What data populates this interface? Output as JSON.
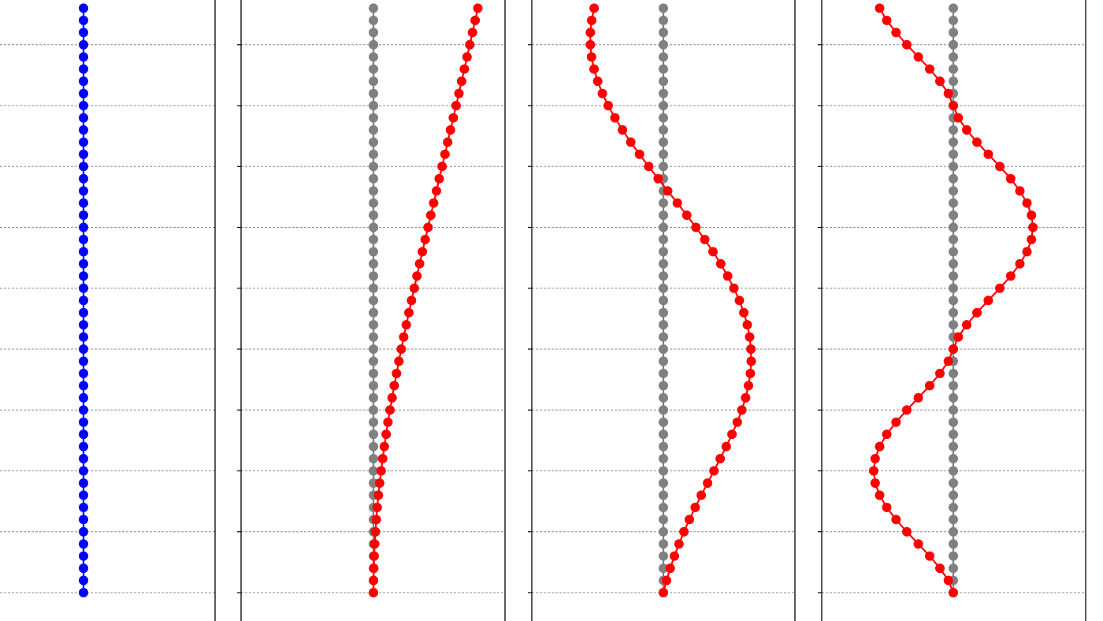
{
  "chart_data": [
    {
      "type": "line",
      "panel": "mode-0",
      "grid": "horizontal-dashed",
      "series": [
        {
          "color": "#0000ff",
          "x": [
            0.0,
            0.0,
            0.0,
            0.0,
            0.0,
            0.0,
            0.0,
            0.0,
            0.0,
            0.0,
            0.0,
            0.0,
            0.0,
            0.0,
            0.0,
            0.0,
            0.0,
            0.0,
            0.0,
            0.0,
            0.0,
            0.0,
            0.0,
            0.0,
            0.0,
            0.0,
            0.0,
            0.0,
            0.0,
            0.0,
            0.0,
            0.0,
            0.0,
            0.0,
            0.0,
            0.0,
            0.0,
            0.0,
            0.0,
            0.0,
            0.0,
            0.0,
            0.0,
            0.0,
            0.0,
            0.0,
            0.0,
            0.0,
            0.0
          ],
          "y": [
            0,
            0.2,
            0.4,
            0.6,
            0.8,
            1.0,
            1.2,
            1.4,
            1.6,
            1.8,
            2.0,
            2.2,
            2.4,
            2.6,
            2.8,
            3.0,
            3.2,
            3.4,
            3.6,
            3.8,
            4.0,
            4.2,
            4.4,
            4.6,
            4.8,
            5.0,
            5.2,
            5.4,
            5.6,
            5.8,
            6.0,
            6.2,
            6.4,
            6.6,
            6.8,
            7.0,
            7.2,
            7.4,
            7.6,
            7.8,
            8.0,
            8.2,
            8.4,
            8.6,
            8.8,
            9.0,
            9.2,
            9.4,
            9.6
          ]
        }
      ]
    },
    {
      "type": "line",
      "panel": "mode-1",
      "grid": "horizontal-dashed",
      "series": [
        {
          "color": "#808080",
          "x": [
            0.0,
            0.0,
            0.0,
            0.0,
            0.0,
            0.0,
            0.0,
            0.0,
            0.0,
            0.0,
            0.0,
            0.0,
            0.0,
            0.0,
            0.0,
            0.0,
            0.0,
            0.0,
            0.0,
            0.0,
            0.0,
            0.0,
            0.0,
            0.0,
            0.0,
            0.0,
            0.0,
            0.0,
            0.0,
            0.0,
            0.0,
            0.0,
            0.0,
            0.0,
            0.0,
            0.0,
            0.0,
            0.0,
            0.0,
            0.0,
            0.0,
            0.0,
            0.0,
            0.0,
            0.0,
            0.0,
            0.0,
            0.0,
            0.0
          ],
          "y": [
            0,
            0.2,
            0.4,
            0.6,
            0.8,
            1.0,
            1.2,
            1.4,
            1.6,
            1.8,
            2.0,
            2.2,
            2.4,
            2.6,
            2.8,
            3.0,
            3.2,
            3.4,
            3.6,
            3.8,
            4.0,
            4.2,
            4.4,
            4.6,
            4.8,
            5.0,
            5.2,
            5.4,
            5.6,
            5.8,
            6.0,
            6.2,
            6.4,
            6.6,
            6.8,
            7.0,
            7.2,
            7.4,
            7.6,
            7.8,
            8.0,
            8.2,
            8.4,
            8.6,
            8.8,
            9.0,
            9.2,
            9.4,
            9.6
          ]
        },
        {
          "color": "#ff0000",
          "x": [
            0.0,
            0.001,
            0.003,
            0.006,
            0.011,
            0.017,
            0.024,
            0.032,
            0.042,
            0.053,
            0.065,
            0.078,
            0.092,
            0.107,
            0.123,
            0.14,
            0.158,
            0.176,
            0.195,
            0.215,
            0.235,
            0.256,
            0.278,
            0.3,
            0.322,
            0.345,
            0.368,
            0.391,
            0.414,
            0.438,
            0.462,
            0.485,
            0.509,
            0.533,
            0.557,
            0.581,
            0.605,
            0.628,
            0.652,
            0.676,
            0.699,
            0.723,
            0.746,
            0.769,
            0.792,
            0.815,
            0.838,
            0.861,
            0.883
          ],
          "y": [
            0,
            0.2,
            0.4,
            0.6,
            0.8,
            1.0,
            1.2,
            1.4,
            1.6,
            1.8,
            2.0,
            2.2,
            2.4,
            2.6,
            2.8,
            3.0,
            3.2,
            3.4,
            3.6,
            3.8,
            4.0,
            4.2,
            4.4,
            4.6,
            4.8,
            5.0,
            5.2,
            5.4,
            5.6,
            5.8,
            6.0,
            6.2,
            6.4,
            6.6,
            6.8,
            7.0,
            7.2,
            7.4,
            7.6,
            7.8,
            8.0,
            8.2,
            8.4,
            8.6,
            8.8,
            9.0,
            9.2,
            9.4,
            9.6
          ]
        }
      ]
    },
    {
      "type": "line",
      "panel": "mode-2",
      "grid": "horizontal-dashed",
      "series": [
        {
          "color": "#808080",
          "x": [
            0.0,
            0.0,
            0.0,
            0.0,
            0.0,
            0.0,
            0.0,
            0.0,
            0.0,
            0.0,
            0.0,
            0.0,
            0.0,
            0.0,
            0.0,
            0.0,
            0.0,
            0.0,
            0.0,
            0.0,
            0.0,
            0.0,
            0.0,
            0.0,
            0.0,
            0.0,
            0.0,
            0.0,
            0.0,
            0.0,
            0.0,
            0.0,
            0.0,
            0.0,
            0.0,
            0.0,
            0.0,
            0.0,
            0.0,
            0.0,
            0.0,
            0.0,
            0.0,
            0.0,
            0.0,
            0.0,
            0.0,
            0.0,
            0.0
          ],
          "y": [
            0,
            0.2,
            0.4,
            0.6,
            0.8,
            1.0,
            1.2,
            1.4,
            1.6,
            1.8,
            2.0,
            2.2,
            2.4,
            2.6,
            2.8,
            3.0,
            3.2,
            3.4,
            3.6,
            3.8,
            4.0,
            4.2,
            4.4,
            4.6,
            4.8,
            5.0,
            5.2,
            5.4,
            5.6,
            5.8,
            6.0,
            6.2,
            6.4,
            6.6,
            6.8,
            7.0,
            7.2,
            7.4,
            7.6,
            7.8,
            8.0,
            8.2,
            8.4,
            8.6,
            8.8,
            9.0,
            9.2,
            9.4,
            9.6
          ]
        },
        {
          "color": "#ff0000",
          "x": [
            0.0,
            0.027,
            0.058,
            0.093,
            0.132,
            0.174,
            0.22,
            0.269,
            0.321,
            0.374,
            0.428,
            0.481,
            0.532,
            0.581,
            0.625,
            0.664,
            0.696,
            0.72,
            0.736,
            0.743,
            0.741,
            0.73,
            0.71,
            0.681,
            0.643,
            0.597,
            0.544,
            0.485,
            0.42,
            0.35,
            0.275,
            0.198,
            0.118,
            0.037,
            -0.044,
            -0.124,
            -0.202,
            -0.276,
            -0.346,
            -0.41,
            -0.467,
            -0.516,
            -0.556,
            -0.587,
            -0.608,
            -0.618,
            -0.618,
            -0.607,
            -0.586
          ],
          "y": [
            0,
            0.2,
            0.4,
            0.6,
            0.8,
            1.0,
            1.2,
            1.4,
            1.6,
            1.8,
            2.0,
            2.2,
            2.4,
            2.6,
            2.8,
            3.0,
            3.2,
            3.4,
            3.6,
            3.8,
            4.0,
            4.2,
            4.4,
            4.6,
            4.8,
            5.0,
            5.2,
            5.4,
            5.6,
            5.8,
            6.0,
            6.2,
            6.4,
            6.6,
            6.8,
            7.0,
            7.2,
            7.4,
            7.6,
            7.8,
            8.0,
            8.2,
            8.4,
            8.6,
            8.8,
            9.0,
            9.2,
            9.4,
            9.6
          ]
        }
      ]
    },
    {
      "type": "line",
      "panel": "mode-3",
      "grid": "horizontal-dashed",
      "series": [
        {
          "color": "#808080",
          "x": [
            0.0,
            0.0,
            0.0,
            0.0,
            0.0,
            0.0,
            0.0,
            0.0,
            0.0,
            0.0,
            0.0,
            0.0,
            0.0,
            0.0,
            0.0,
            0.0,
            0.0,
            0.0,
            0.0,
            0.0,
            0.0,
            0.0,
            0.0,
            0.0,
            0.0,
            0.0,
            0.0,
            0.0,
            0.0,
            0.0,
            0.0,
            0.0,
            0.0,
            0.0,
            0.0,
            0.0,
            0.0,
            0.0,
            0.0,
            0.0,
            0.0,
            0.0,
            0.0,
            0.0,
            0.0,
            0.0,
            0.0,
            0.0,
            0.0
          ],
          "y": [
            0,
            0.2,
            0.4,
            0.6,
            0.8,
            1.0,
            1.2,
            1.4,
            1.6,
            1.8,
            2.0,
            2.2,
            2.4,
            2.6,
            2.8,
            3.0,
            3.2,
            3.4,
            3.6,
            3.8,
            4.0,
            4.2,
            4.4,
            4.6,
            4.8,
            5.0,
            5.2,
            5.4,
            5.6,
            5.8,
            6.0,
            6.2,
            6.4,
            6.6,
            6.8,
            7.0,
            7.2,
            7.4,
            7.6,
            7.8,
            8.0,
            8.2,
            8.4,
            8.6,
            8.8,
            9.0,
            9.2,
            9.4,
            9.6
          ]
        },
        {
          "color": "#ff0000",
          "x": [
            0.0,
            -0.042,
            -0.113,
            -0.2,
            -0.296,
            -0.393,
            -0.485,
            -0.563,
            -0.623,
            -0.661,
            -0.674,
            -0.661,
            -0.623,
            -0.563,
            -0.485,
            -0.393,
            -0.296,
            -0.2,
            -0.113,
            -0.042,
            0.0,
            0.042,
            0.113,
            0.2,
            0.296,
            0.393,
            0.485,
            0.563,
            0.623,
            0.661,
            0.674,
            0.661,
            0.623,
            0.563,
            0.485,
            0.393,
            0.296,
            0.2,
            0.113,
            0.042,
            0.0,
            -0.042,
            -0.113,
            -0.2,
            -0.296,
            -0.393,
            -0.485,
            -0.563,
            -0.623
          ],
          "y": [
            0,
            0.2,
            0.4,
            0.6,
            0.8,
            1.0,
            1.2,
            1.4,
            1.6,
            1.8,
            2.0,
            2.2,
            2.4,
            2.6,
            2.8,
            3.0,
            3.2,
            3.4,
            3.6,
            3.8,
            4.0,
            4.2,
            4.4,
            4.6,
            4.8,
            5.0,
            5.2,
            5.4,
            5.6,
            5.8,
            6.0,
            6.2,
            6.4,
            6.6,
            6.8,
            7.0,
            7.2,
            7.4,
            7.6,
            7.8,
            8.0,
            8.2,
            8.4,
            8.6,
            8.8,
            9.0,
            9.2,
            9.4,
            9.6
          ]
        }
      ]
    }
  ]
}
